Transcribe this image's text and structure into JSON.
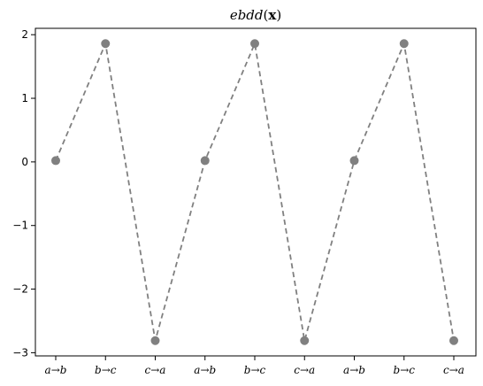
{
  "chart_data": {
    "type": "line",
    "title": "ebdd(x)",
    "xlabel": "",
    "ylabel": "",
    "categories": [
      "a→b",
      "b→c",
      "c→a",
      "a→b",
      "b→c",
      "c→a",
      "a→b",
      "b→c",
      "c→a"
    ],
    "values": [
      0.02,
      1.86,
      -2.81,
      0.02,
      1.86,
      -2.81,
      0.02,
      1.86,
      -2.81
    ],
    "y_ticks": [
      -3,
      -2,
      -1,
      0,
      1,
      2
    ],
    "y_tick_labels": [
      "−3",
      "−2",
      "−1",
      "0",
      "1",
      "2"
    ],
    "ylim": [
      -3.05,
      2.1
    ],
    "grid": false,
    "series_color": "#808080",
    "line_style": "dashed",
    "marker": "circle"
  }
}
